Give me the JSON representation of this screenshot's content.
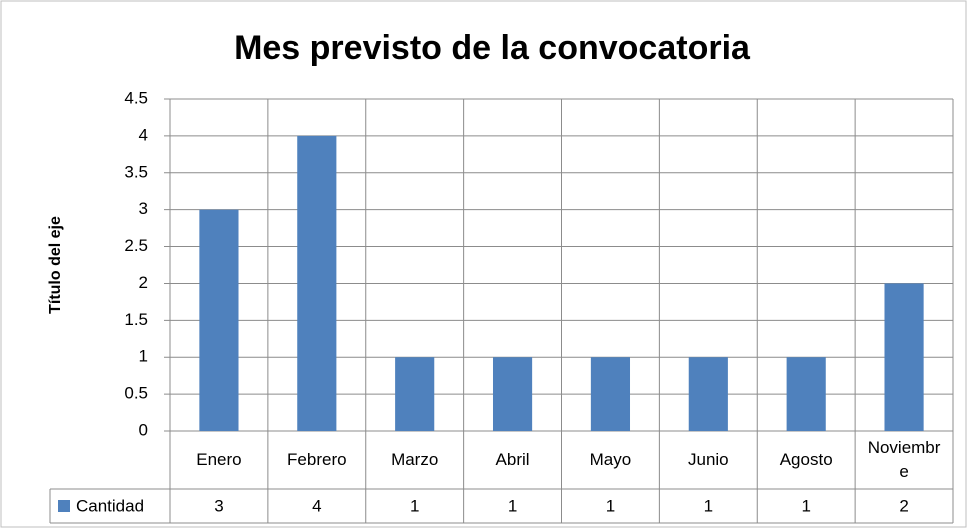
{
  "chart_data": {
    "type": "bar",
    "title": "Mes previsto de la convocatoria",
    "y_label": "Título del eje",
    "categories": [
      "Enero",
      "Febrero",
      "Marzo",
      "Abril",
      "Mayo",
      "Junio",
      "Agosto",
      "Noviembre"
    ],
    "series": [
      {
        "name": "Cantidad",
        "color": "#4f81bd",
        "values": [
          3,
          4,
          1,
          1,
          1,
          1,
          1,
          2
        ]
      }
    ],
    "ylim": [
      0,
      4.5
    ],
    "yticks": [
      0,
      0.5,
      1,
      1.5,
      2,
      2.5,
      3,
      3.5,
      4,
      4.5
    ],
    "grid": true,
    "data_table": true
  }
}
